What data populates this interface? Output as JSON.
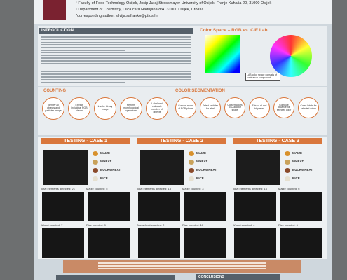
{
  "header": {
    "affiliations": [
      "¹ Faculty of Food Technology Osijek, Josip Juraj Strossmayer University of Osijek, Franje Kuhača 20, 31000 Osijek",
      "² Department of Chemistry, Ulica cara Hadrijana 8/A, 31000 Osijek, Croatia",
      "*corresponding author: silvija.safranko@ptfos.hr"
    ]
  },
  "introduction": {
    "heading": "INTRODUCTION"
  },
  "color_space": {
    "title": "Color Space – RGB vs. CIE Lab",
    "caption": "LAB color space consists of luminance component"
  },
  "counting": {
    "heading": "COUNTING",
    "steps": [
      "Identify all objects and particles image",
      "Extract individual RGB planes",
      "Invoke binary image",
      "Perform morphological operations",
      "Label and calculate number of objects"
    ]
  },
  "segmentation": {
    "heading": "COLOR SEGMENTATION",
    "steps": [
      "Convert model of RGB planes",
      "Select particles for label",
      "Convert colors to LAB color space",
      "Extract a* and b* planes",
      "Compute distance for selected color",
      "Count labels for selected colors"
    ]
  },
  "cases": [
    {
      "title": "TESTING - CASE 1",
      "legend": [
        "MAIZE",
        "WHEAT",
        "BUCKWHEAT",
        "RICE"
      ],
      "results": [
        "Total elements detected: 21",
        "Maize counted: 5",
        "Wheat counted: 7",
        "Rice counted: 9"
      ]
    },
    {
      "title": "TESTING - CASE 2",
      "legend": [
        "MAIZE",
        "WHEAT",
        "BUCKWHEAT",
        "RICE"
      ],
      "results": [
        "Total elements detected: 15",
        "Maize counted: 3",
        "Buckwheat counted: 2",
        "Rice counted: 10"
      ]
    },
    {
      "title": "TESTING - CASE 3",
      "legend": [
        "MAIZE",
        "WHEAT",
        "BUCKWHEAT",
        "RICE"
      ],
      "results": [
        "Total elements detected: 16",
        "Maize counted: 6",
        "Wheat counted: 4",
        "Rice counted: 6"
      ]
    }
  ],
  "conclusions": {
    "heading": "CONCLUSIONS"
  }
}
